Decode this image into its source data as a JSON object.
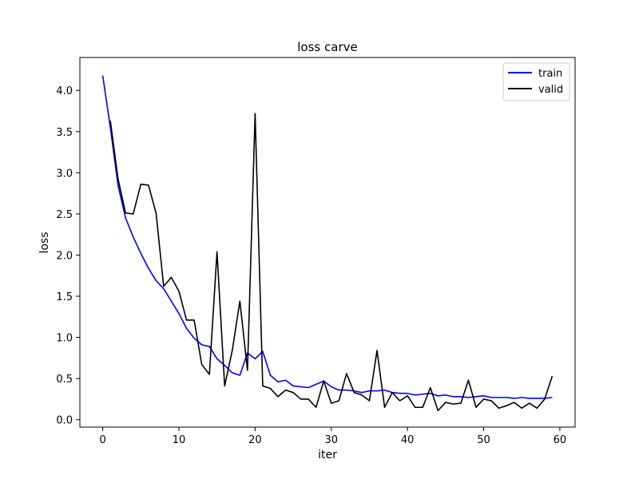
{
  "chart_data": {
    "type": "line",
    "title": "loss carve",
    "xlabel": "iter",
    "ylabel": "loss",
    "xlim": [
      -3,
      62
    ],
    "ylim": [
      -0.09,
      4.4
    ],
    "xticks": [
      0,
      10,
      20,
      30,
      40,
      50,
      60
    ],
    "yticks": [
      0.0,
      0.5,
      1.0,
      1.5,
      2.0,
      2.5,
      3.0,
      3.5,
      4.0
    ],
    "xtick_labels": [
      "0",
      "10",
      "20",
      "30",
      "40",
      "50",
      "60"
    ],
    "ytick_labels": [
      "0.0",
      "0.5",
      "1.0",
      "1.5",
      "2.0",
      "2.5",
      "3.0",
      "3.5",
      "4.0"
    ],
    "legend_position": "top-right",
    "grid": false,
    "series": [
      {
        "name": "train",
        "color": "#0000ff",
        "x": [
          0,
          1,
          2,
          3,
          4,
          5,
          6,
          7,
          8,
          9,
          10,
          11,
          12,
          13,
          14,
          15,
          16,
          17,
          18,
          19,
          20,
          21,
          22,
          23,
          24,
          25,
          26,
          27,
          28,
          29,
          30,
          31,
          32,
          33,
          34,
          35,
          36,
          37,
          38,
          39,
          40,
          41,
          42,
          43,
          44,
          45,
          46,
          47,
          48,
          49,
          50,
          51,
          52,
          53,
          54,
          55,
          56,
          57,
          58,
          59
        ],
        "y": [
          4.18,
          3.55,
          2.85,
          2.45,
          2.22,
          2.02,
          1.84,
          1.69,
          1.59,
          1.44,
          1.29,
          1.11,
          0.99,
          0.91,
          0.89,
          0.74,
          0.66,
          0.57,
          0.54,
          0.81,
          0.74,
          0.83,
          0.54,
          0.46,
          0.48,
          0.41,
          0.4,
          0.39,
          0.43,
          0.47,
          0.4,
          0.36,
          0.36,
          0.35,
          0.33,
          0.35,
          0.35,
          0.36,
          0.33,
          0.32,
          0.32,
          0.3,
          0.31,
          0.32,
          0.29,
          0.3,
          0.28,
          0.28,
          0.27,
          0.28,
          0.29,
          0.27,
          0.27,
          0.27,
          0.26,
          0.27,
          0.26,
          0.26,
          0.26,
          0.27
        ]
      },
      {
        "name": "valid",
        "color": "#000000",
        "x": [
          1,
          2,
          3,
          4,
          5,
          6,
          7,
          8,
          9,
          10,
          11,
          12,
          13,
          14,
          15,
          16,
          17,
          18,
          19,
          20,
          21,
          22,
          23,
          24,
          25,
          26,
          27,
          28,
          29,
          30,
          31,
          32,
          33,
          34,
          35,
          36,
          37,
          38,
          39,
          40,
          41,
          42,
          43,
          44,
          45,
          46,
          47,
          48,
          49,
          50,
          51,
          52,
          53,
          54,
          55,
          56,
          57,
          58,
          59
        ],
        "y": [
          3.63,
          2.93,
          2.51,
          2.5,
          2.86,
          2.85,
          2.51,
          1.62,
          1.73,
          1.56,
          1.21,
          1.21,
          0.67,
          0.55,
          2.04,
          0.41,
          0.84,
          1.44,
          0.6,
          3.72,
          0.41,
          0.38,
          0.28,
          0.36,
          0.33,
          0.25,
          0.25,
          0.15,
          0.47,
          0.2,
          0.23,
          0.56,
          0.33,
          0.3,
          0.23,
          0.84,
          0.15,
          0.33,
          0.23,
          0.29,
          0.15,
          0.15,
          0.39,
          0.11,
          0.21,
          0.19,
          0.2,
          0.48,
          0.15,
          0.25,
          0.23,
          0.14,
          0.17,
          0.21,
          0.14,
          0.2,
          0.14,
          0.25,
          0.53
        ]
      }
    ]
  }
}
